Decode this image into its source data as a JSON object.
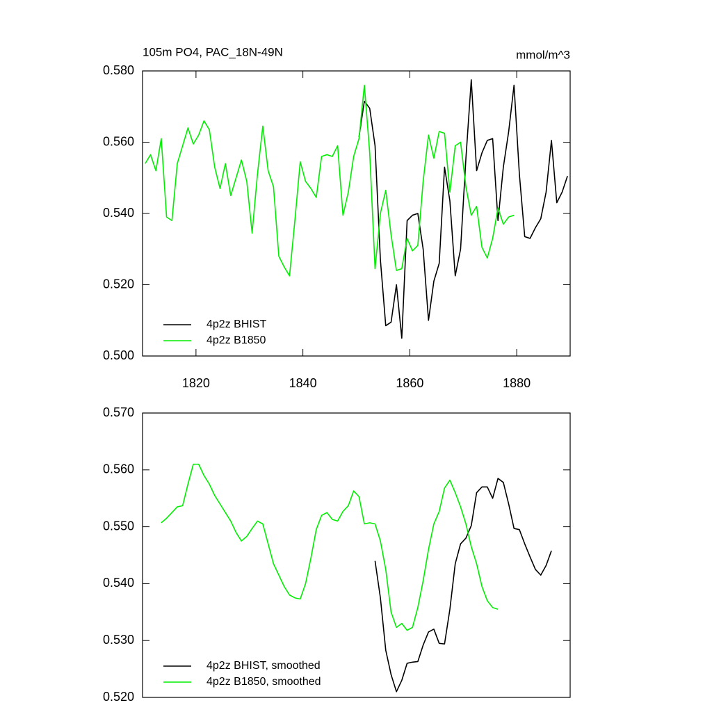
{
  "chart_data": [
    {
      "type": "line",
      "title": "105m PO4, PAC_18N-49N",
      "right_title": "mmol/m^3",
      "xlim": [
        1810,
        1890
      ],
      "xticks": [
        1820,
        1840,
        1860,
        1880
      ],
      "ylim": [
        0.5,
        0.58
      ],
      "yticks": [
        {
          "value": 0.5,
          "label": "0.500"
        },
        {
          "value": 0.52,
          "label": "0.520"
        },
        {
          "value": 0.54,
          "label": "0.540"
        },
        {
          "value": 0.56,
          "label": "0.560"
        },
        {
          "value": 0.58,
          "label": "0.580"
        }
      ],
      "legend": "lower left",
      "series": [
        {
          "name": "4p2z BHIST",
          "color": "#000000",
          "x": [
            1850.5,
            1851.5,
            1852.5,
            1853.5,
            1854.5,
            1855.5,
            1856.5,
            1857.5,
            1858.5,
            1859.5,
            1860.5,
            1861.5,
            1862.5,
            1863.5,
            1864.5,
            1865.5,
            1866.5,
            1867.5,
            1868.5,
            1869.5,
            1870.5,
            1871.5,
            1872.5,
            1873.5,
            1874.5,
            1875.5,
            1876.5,
            1877.5,
            1878.5,
            1879.5,
            1880.5,
            1881.5,
            1882.5,
            1883.5,
            1884.5,
            1885.5,
            1886.5,
            1887.5,
            1888.5,
            1889.5
          ],
          "values": [
            0.5615,
            0.5715,
            0.5695,
            0.559,
            0.527,
            0.5085,
            0.5095,
            0.52,
            0.505,
            0.538,
            0.5395,
            0.54,
            0.53,
            0.51,
            0.521,
            0.526,
            0.553,
            0.5435,
            0.5225,
            0.53,
            0.5555,
            0.5775,
            0.552,
            0.557,
            0.5605,
            0.561,
            0.538,
            0.553,
            0.563,
            0.576,
            0.551,
            0.5335,
            0.533,
            0.536,
            0.5385,
            0.546,
            0.5605,
            0.543,
            0.546,
            0.5505
          ]
        },
        {
          "name": "4p2z B1850",
          "color": "#00ee00",
          "x": [
            1810.5,
            1811.5,
            1812.5,
            1813.5,
            1814.5,
            1815.5,
            1816.5,
            1817.5,
            1818.5,
            1819.5,
            1820.5,
            1821.5,
            1822.5,
            1823.5,
            1824.5,
            1825.5,
            1826.5,
            1827.5,
            1828.5,
            1829.5,
            1830.5,
            1831.5,
            1832.5,
            1833.5,
            1834.5,
            1835.5,
            1836.5,
            1837.5,
            1838.5,
            1839.5,
            1840.5,
            1841.5,
            1842.5,
            1843.5,
            1844.5,
            1845.5,
            1846.5,
            1847.5,
            1848.5,
            1849.5,
            1850.5,
            1851.5,
            1852.5,
            1853.5,
            1854.5,
            1855.5,
            1856.5,
            1857.5,
            1858.5,
            1859.5,
            1860.5,
            1861.5,
            1862.5,
            1863.5,
            1864.5,
            1865.5,
            1866.5,
            1867.5,
            1868.5,
            1869.5,
            1870.5,
            1871.5,
            1872.5,
            1873.5,
            1874.5,
            1875.5,
            1876.5,
            1877.5,
            1878.5,
            1879.5
          ],
          "values": [
            0.554,
            0.5565,
            0.552,
            0.561,
            0.539,
            0.538,
            0.554,
            0.559,
            0.564,
            0.5595,
            0.562,
            0.566,
            0.5635,
            0.553,
            0.547,
            0.554,
            0.545,
            0.55,
            0.555,
            0.549,
            0.5345,
            0.551,
            0.5645,
            0.552,
            0.5475,
            0.528,
            0.525,
            0.5225,
            0.538,
            0.5545,
            0.549,
            0.547,
            0.5445,
            0.556,
            0.5565,
            0.556,
            0.559,
            0.5395,
            0.546,
            0.556,
            0.561,
            0.576,
            0.557,
            0.5245,
            0.54,
            0.5465,
            0.534,
            0.524,
            0.5245,
            0.533,
            0.5295,
            0.531,
            0.549,
            0.562,
            0.5555,
            0.563,
            0.5625,
            0.546,
            0.559,
            0.56,
            0.5475,
            0.5395,
            0.542,
            0.5305,
            0.5275,
            0.533,
            0.5415,
            0.537,
            0.539,
            0.5395
          ]
        }
      ]
    },
    {
      "type": "line",
      "xlim": [
        1810,
        1890
      ],
      "ylim": [
        0.52,
        0.57
      ],
      "yticks": [
        {
          "value": 0.52,
          "label": "0.520"
        },
        {
          "value": 0.53,
          "label": "0.530"
        },
        {
          "value": 0.54,
          "label": "0.540"
        },
        {
          "value": 0.55,
          "label": "0.550"
        },
        {
          "value": 0.56,
          "label": "0.560"
        },
        {
          "value": 0.57,
          "label": "0.570"
        }
      ],
      "legend": "lower left",
      "series": [
        {
          "name": "4p2z BHIST, smoothed",
          "color": "#000000",
          "x": [
            1853.5,
            1854.5,
            1855.5,
            1856.5,
            1857.5,
            1858.5,
            1859.5,
            1860.5,
            1861.5,
            1862.5,
            1863.5,
            1864.5,
            1865.5,
            1866.5,
            1867.5,
            1868.5,
            1869.5,
            1870.5,
            1871.5,
            1872.5,
            1873.5,
            1874.5,
            1875.5,
            1876.5,
            1877.5,
            1878.5,
            1879.5,
            1880.5,
            1881.5,
            1882.5,
            1883.5,
            1884.5,
            1885.5,
            1886.5
          ],
          "values": [
            0.544,
            0.5375,
            0.5283,
            0.524,
            0.521,
            0.523,
            0.526,
            0.5262,
            0.5263,
            0.5292,
            0.5315,
            0.532,
            0.5295,
            0.5294,
            0.5355,
            0.5435,
            0.547,
            0.548,
            0.5502,
            0.556,
            0.557,
            0.557,
            0.555,
            0.5585,
            0.5578,
            0.554,
            0.5497,
            0.5495,
            0.547,
            0.5447,
            0.5425,
            0.5415,
            0.5432,
            0.5458
          ]
        },
        {
          "name": "4p2z B1850, smoothed",
          "color": "#00ee00",
          "x": [
            1813.5,
            1814.5,
            1815.5,
            1816.5,
            1817.5,
            1818.5,
            1819.5,
            1820.5,
            1821.5,
            1822.5,
            1823.5,
            1824.5,
            1825.5,
            1826.5,
            1827.5,
            1828.5,
            1829.5,
            1830.5,
            1831.5,
            1832.5,
            1833.5,
            1834.5,
            1835.5,
            1836.5,
            1837.5,
            1838.5,
            1839.5,
            1840.5,
            1841.5,
            1842.5,
            1843.5,
            1844.5,
            1845.5,
            1846.5,
            1847.5,
            1848.5,
            1849.5,
            1850.5,
            1851.5,
            1852.5,
            1853.5,
            1854.5,
            1855.5,
            1856.5,
            1857.5,
            1858.5,
            1859.5,
            1860.5,
            1861.5,
            1862.5,
            1863.5,
            1864.5,
            1865.5,
            1866.5,
            1867.5,
            1868.5,
            1869.5,
            1870.5,
            1871.5,
            1872.5,
            1873.5,
            1874.5,
            1875.5,
            1876.5
          ],
          "values": [
            0.5507,
            0.5515,
            0.5525,
            0.5535,
            0.5537,
            0.5575,
            0.561,
            0.561,
            0.559,
            0.5575,
            0.5555,
            0.554,
            0.5525,
            0.551,
            0.549,
            0.5475,
            0.5483,
            0.5497,
            0.551,
            0.5505,
            0.547,
            0.5435,
            0.5415,
            0.5395,
            0.538,
            0.5375,
            0.5373,
            0.54,
            0.5445,
            0.5495,
            0.552,
            0.5525,
            0.5513,
            0.551,
            0.5527,
            0.5537,
            0.5563,
            0.5553,
            0.5505,
            0.5507,
            0.5505,
            0.5475,
            0.5425,
            0.535,
            0.5323,
            0.533,
            0.5318,
            0.5323,
            0.5358,
            0.5405,
            0.546,
            0.5505,
            0.5527,
            0.5568,
            0.5582,
            0.556,
            0.5535,
            0.5505,
            0.5465,
            0.5435,
            0.5395,
            0.537,
            0.5358,
            0.5355
          ]
        }
      ]
    }
  ]
}
